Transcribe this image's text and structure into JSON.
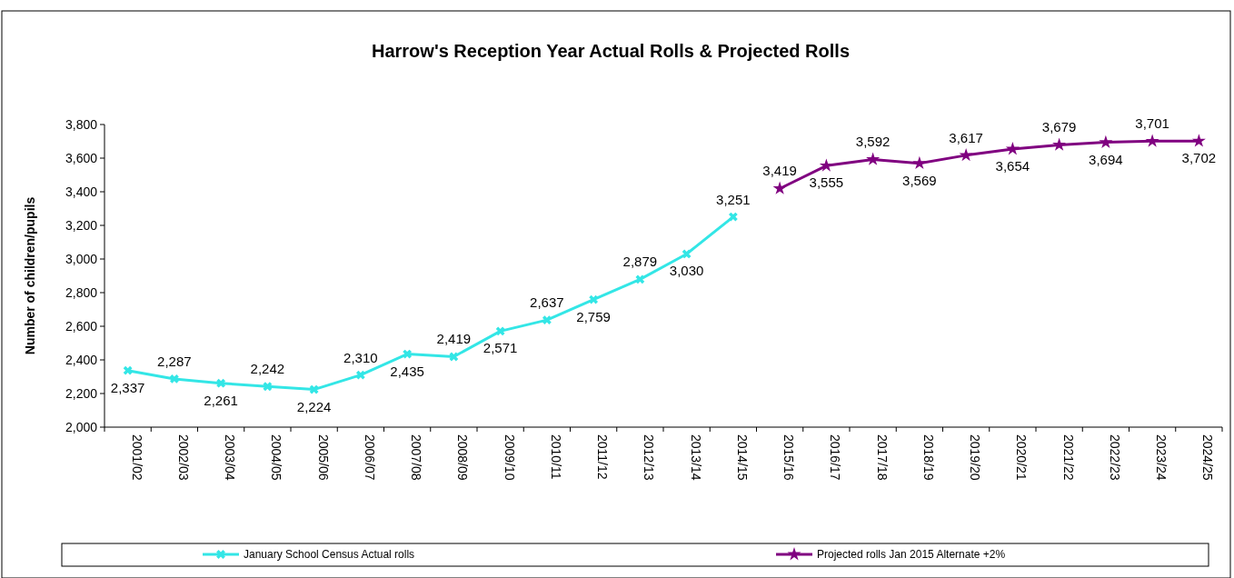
{
  "chart_data": {
    "type": "line",
    "title": "Harrow's Reception Year Actual Rolls & Projected Rolls",
    "ylabel": "Number of children/pupils",
    "categories": [
      "2001/02",
      "2002/03",
      "2003/04",
      "2004/05",
      "2005/06",
      "2006/07",
      "2007/08",
      "2008/09",
      "2009/10",
      "2010/11",
      "2011/12",
      "2012/13",
      "2013/14",
      "2014/15",
      "2015/16",
      "2016/17",
      "2017/18",
      "2018/19",
      "2019/20",
      "2020/21",
      "2021/22",
      "2022/23",
      "2023/24",
      "2024/25"
    ],
    "series": [
      {
        "name": "January School Census Actual rolls",
        "color": "#33e6e6",
        "marker": "cross",
        "values": [
          2337,
          2287,
          2261,
          2242,
          2224,
          2310,
          2435,
          2419,
          2571,
          2637,
          2759,
          2879,
          3030,
          3251,
          null,
          null,
          null,
          null,
          null,
          null,
          null,
          null,
          null,
          null
        ],
        "value_labels": [
          "2,337",
          "2,287",
          "2,261",
          "2,242",
          "2,224",
          "2,310",
          "2,435",
          "2,419",
          "2,571",
          "2,637",
          "2,759",
          "2,879",
          "3,030",
          "3,251",
          null,
          null,
          null,
          null,
          null,
          null,
          null,
          null,
          null,
          null
        ]
      },
      {
        "name": "Projected rolls Jan 2015 Alternate +2%",
        "color": "#800080",
        "marker": "star",
        "values": [
          null,
          null,
          null,
          null,
          null,
          null,
          null,
          null,
          null,
          null,
          null,
          null,
          null,
          null,
          3419,
          3555,
          3592,
          3569,
          3617,
          3654,
          3679,
          3694,
          3701,
          3702
        ],
        "value_labels": [
          null,
          null,
          null,
          null,
          null,
          null,
          null,
          null,
          null,
          null,
          null,
          null,
          null,
          null,
          "3,419",
          "3,555",
          "3,592",
          "3,569",
          "3,617",
          "3,654",
          "3,679",
          "3,694",
          "3,701",
          "3,702"
        ]
      }
    ],
    "ylim": [
      2000,
      3800
    ],
    "yticks": [
      {
        "value": 2000,
        "label": "2,000"
      },
      {
        "value": 2200,
        "label": "2,200"
      },
      {
        "value": 2400,
        "label": "2,400"
      },
      {
        "value": 2600,
        "label": "2,600"
      },
      {
        "value": 2800,
        "label": "2,800"
      },
      {
        "value": 3000,
        "label": "3,000"
      },
      {
        "value": 3200,
        "label": "3,200"
      },
      {
        "value": 3400,
        "label": "3,400"
      },
      {
        "value": 3600,
        "label": "3,600"
      },
      {
        "value": 3800,
        "label": "3,800"
      }
    ],
    "grid": false,
    "legend": "bottom"
  }
}
